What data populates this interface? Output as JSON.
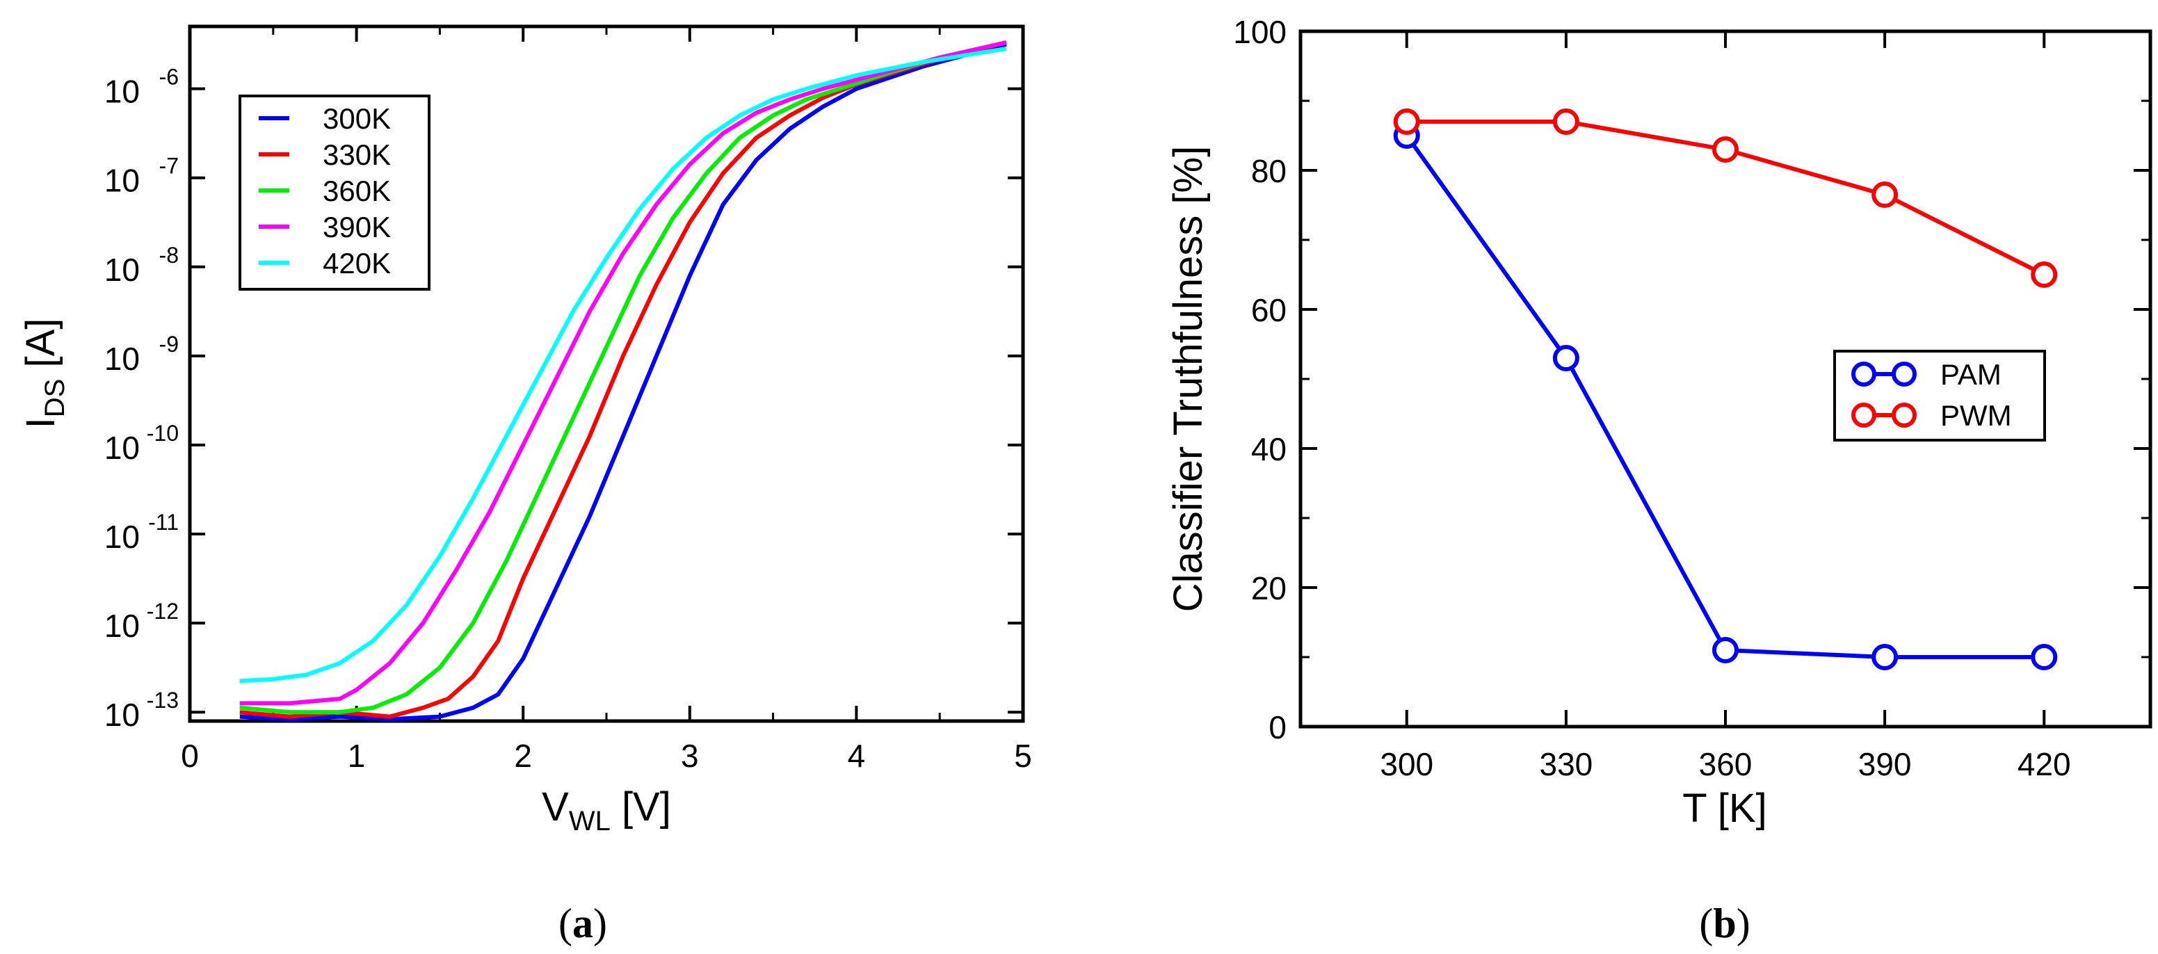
{
  "chart_data": [
    {
      "panel": "a",
      "type": "line",
      "caption_letter": "a",
      "xlabel_main": "V",
      "xlabel_sub": "WL",
      "xlabel_unit": " [V]",
      "ylabel_main": "I",
      "ylabel_sub": "DS",
      "ylabel_unit": " [A]",
      "xlim": [
        0,
        5
      ],
      "ylim_log": [
        -13.1,
        -5.3
      ],
      "x_ticks": [
        0,
        1,
        2,
        3,
        4,
        5
      ],
      "x_tick_labels": [
        "0",
        "1",
        "2",
        "3",
        "4",
        "5"
      ],
      "y_tick_exponents": [
        -13,
        -12,
        -11,
        -10,
        -9,
        -8,
        -7,
        -6
      ],
      "y_tick_base": "10",
      "y_tick_sups": [
        "-13",
        "-12",
        "-11",
        "-10",
        "-9",
        "-8",
        "-7",
        "-6"
      ],
      "legend_position": "top-left",
      "series": [
        {
          "name": "300K",
          "color": "#0000ff",
          "x": [
            0.3,
            0.6,
            0.9,
            1.2,
            1.5,
            1.7,
            1.85,
            2.0,
            2.2,
            2.4,
            2.6,
            2.8,
            3.0,
            3.2,
            3.4,
            3.6,
            3.8,
            4.0,
            4.4,
            4.9
          ],
          "logy": [
            -13.05,
            -13.08,
            -13.05,
            -13.08,
            -13.05,
            -12.95,
            -12.8,
            -12.4,
            -11.6,
            -10.8,
            -9.9,
            -9.0,
            -8.1,
            -7.3,
            -6.8,
            -6.45,
            -6.2,
            -6.0,
            -5.75,
            -5.5
          ]
        },
        {
          "name": "330K",
          "color": "#ff0000",
          "x": [
            0.3,
            0.6,
            0.9,
            1.2,
            1.4,
            1.55,
            1.7,
            1.85,
            2.0,
            2.2,
            2.4,
            2.6,
            2.8,
            3.0,
            3.2,
            3.4,
            3.6,
            3.8,
            4.0,
            4.4,
            4.9
          ],
          "logy": [
            -13.0,
            -13.05,
            -13.0,
            -13.05,
            -12.95,
            -12.85,
            -12.6,
            -12.2,
            -11.5,
            -10.7,
            -9.9,
            -9.0,
            -8.2,
            -7.5,
            -6.95,
            -6.55,
            -6.3,
            -6.1,
            -5.95,
            -5.72,
            -5.48
          ]
        },
        {
          "name": "360K",
          "color": "#00ee00",
          "x": [
            0.3,
            0.6,
            0.9,
            1.1,
            1.3,
            1.5,
            1.7,
            1.9,
            2.1,
            2.3,
            2.5,
            2.7,
            2.9,
            3.1,
            3.3,
            3.5,
            3.7,
            3.9,
            4.2,
            4.5,
            4.9
          ],
          "logy": [
            -12.95,
            -13.0,
            -13.0,
            -12.95,
            -12.8,
            -12.5,
            -12.0,
            -11.3,
            -10.5,
            -9.7,
            -8.9,
            -8.1,
            -7.45,
            -6.95,
            -6.55,
            -6.3,
            -6.12,
            -6.0,
            -5.82,
            -5.65,
            -5.48
          ]
        },
        {
          "name": "390K",
          "color": "#ff00ff",
          "x": [
            0.3,
            0.6,
            0.9,
            1.0,
            1.2,
            1.4,
            1.6,
            1.8,
            2.0,
            2.2,
            2.4,
            2.6,
            2.8,
            3.0,
            3.2,
            3.4,
            3.6,
            3.8,
            4.1,
            4.5,
            4.9
          ],
          "logy": [
            -12.9,
            -12.9,
            -12.85,
            -12.75,
            -12.45,
            -12.0,
            -11.4,
            -10.75,
            -10.0,
            -9.25,
            -8.5,
            -7.85,
            -7.3,
            -6.85,
            -6.5,
            -6.27,
            -6.12,
            -6.0,
            -5.85,
            -5.65,
            -5.48
          ]
        },
        {
          "name": "420K",
          "color": "#00ffff",
          "x": [
            0.3,
            0.5,
            0.7,
            0.9,
            1.1,
            1.3,
            1.5,
            1.7,
            1.9,
            2.1,
            2.3,
            2.5,
            2.7,
            2.9,
            3.1,
            3.3,
            3.5,
            3.7,
            4.0,
            4.4,
            4.9
          ],
          "logy": [
            -12.65,
            -12.63,
            -12.58,
            -12.45,
            -12.2,
            -11.8,
            -11.25,
            -10.6,
            -9.9,
            -9.2,
            -8.5,
            -7.9,
            -7.35,
            -6.9,
            -6.55,
            -6.3,
            -6.12,
            -6.0,
            -5.85,
            -5.7,
            -5.55
          ]
        }
      ]
    },
    {
      "panel": "b",
      "type": "line",
      "caption_letter": "b",
      "xlabel": "T [K]",
      "ylabel": "Classifier Truthfulness [%]",
      "xlim": [
        280,
        440
      ],
      "ylim": [
        0,
        100
      ],
      "x_ticks": [
        300,
        330,
        360,
        390,
        420
      ],
      "x_tick_labels": [
        "300",
        "330",
        "360",
        "390",
        "420"
      ],
      "y_ticks": [
        0,
        20,
        40,
        60,
        80,
        100
      ],
      "y_tick_labels": [
        "0",
        "20",
        "40",
        "60",
        "80",
        "100"
      ],
      "legend_position": "center-right",
      "series": [
        {
          "name": "PAM",
          "color": "#0000ff",
          "x": [
            300,
            330,
            360,
            390,
            420
          ],
          "y": [
            85,
            53,
            11,
            10,
            10
          ]
        },
        {
          "name": "PWM",
          "color": "#ff0000",
          "x": [
            300,
            330,
            360,
            390,
            420
          ],
          "y": [
            87,
            87,
            83,
            76.5,
            65
          ]
        }
      ]
    }
  ]
}
